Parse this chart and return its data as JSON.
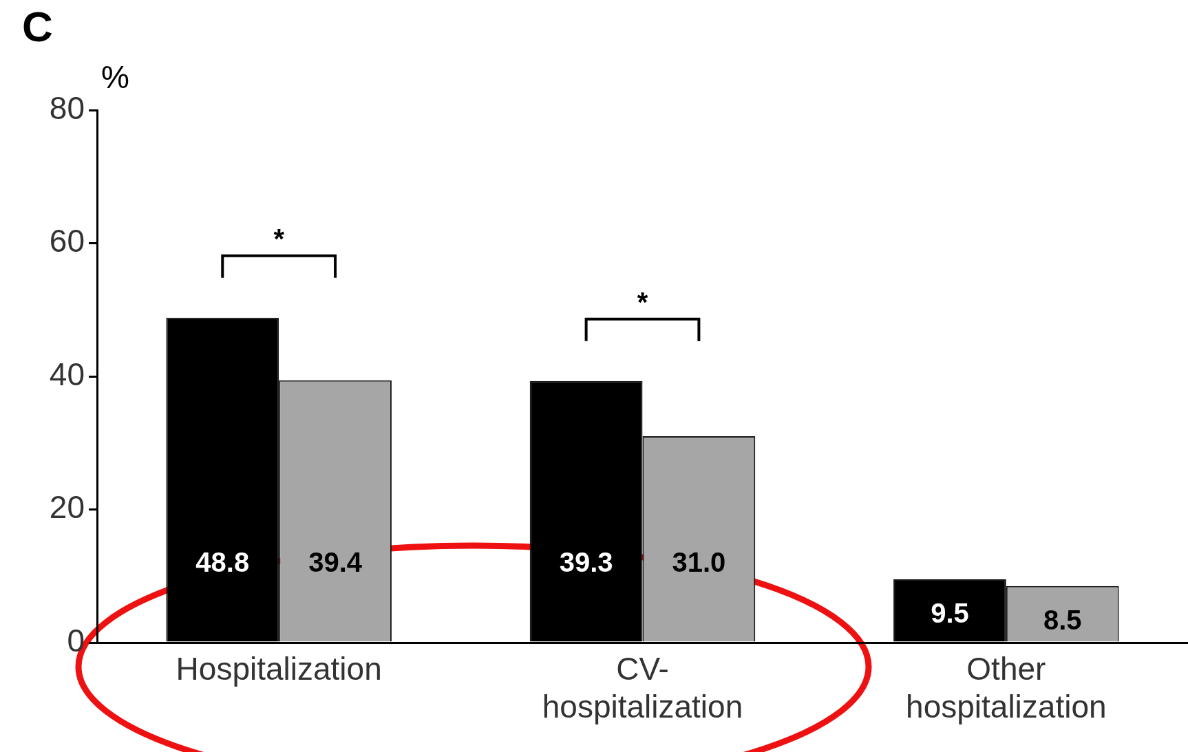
{
  "chart_data": {
    "type": "bar",
    "title": "C",
    "ylabel": "%",
    "categories": [
      "Hospitalization",
      "CV-hospitalization",
      "Other hospitalization"
    ],
    "series": [
      {
        "color": "#000000",
        "values": [
          48.8,
          39.3,
          9.5
        ],
        "value_labels": [
          "48.8",
          "39.3",
          "9.5"
        ]
      },
      {
        "color": "#a6a6a6",
        "values": [
          39.4,
          31.0,
          8.5
        ],
        "value_labels": [
          "39.4",
          "31.0",
          "8.5"
        ]
      }
    ],
    "ylim": [
      0,
      80
    ],
    "yticks": [
      0,
      20,
      40,
      60,
      80
    ],
    "grid": false,
    "legend": false,
    "annotations": [
      "*",
      "*"
    ]
  }
}
